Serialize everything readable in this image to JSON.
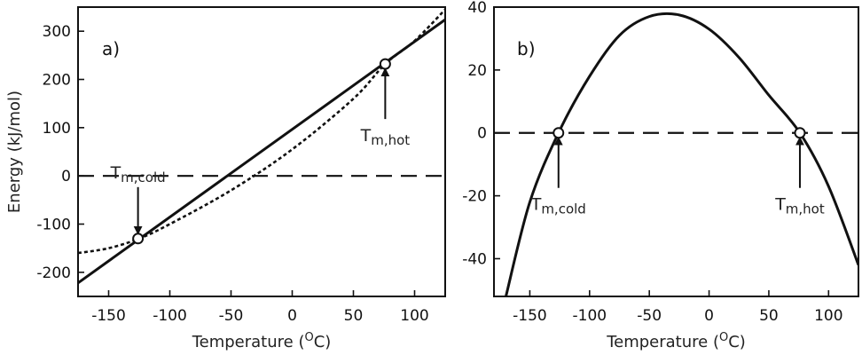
{
  "chart_data": [
    {
      "type": "line",
      "panel_label": "a)",
      "xlabel_main": "Temperature (",
      "xlabel_unit_sup": "O",
      "xlabel_unit": "C)",
      "ylabel": "Energy (kJ/mol)",
      "xlim": [
        -175,
        125
      ],
      "ylim": [
        -250,
        350
      ],
      "xticks": [
        -150,
        -100,
        -50,
        0,
        50,
        100
      ],
      "yticks": [
        -200,
        -100,
        0,
        100,
        200,
        300
      ],
      "series": [
        {
          "style": "solid",
          "x": [
            -175,
            125
          ],
          "y": [
            -222,
            324
          ]
        },
        {
          "style": "dotted",
          "x": [
            -175,
            -150,
            -125,
            -100,
            -50,
            0,
            50,
            76,
            100,
            125
          ],
          "y": [
            -160,
            -150,
            -130,
            -100,
            -30,
            55,
            160,
            232,
            280,
            345
          ]
        },
        {
          "style": "dashed",
          "x": [
            -175,
            125
          ],
          "y": [
            0,
            0
          ]
        }
      ],
      "markers": [
        {
          "x": -126,
          "y": -130
        },
        {
          "x": 76,
          "y": 232
        }
      ],
      "annotations": [
        {
          "main": "T",
          "sub": "m,cold",
          "x": -126,
          "y": -130,
          "direction": "down"
        },
        {
          "main": "T",
          "sub": "m,hot",
          "x": 76,
          "y": 232,
          "direction": "up"
        }
      ],
      "grid": false
    },
    {
      "type": "line",
      "panel_label": "b)",
      "xlabel_main": "Temperature (",
      "xlabel_unit_sup": "O",
      "xlabel_unit": "C)",
      "ylabel": "",
      "xlim": [
        -180,
        125
      ],
      "ylim": [
        -52,
        40
      ],
      "xticks": [
        -150,
        -100,
        -50,
        0,
        50,
        100
      ],
      "yticks": [
        -40,
        -20,
        0,
        20,
        40
      ],
      "series": [
        {
          "style": "solid",
          "x": [
            -170,
            -150,
            -126,
            -100,
            -75,
            -50,
            -25,
            0,
            25,
            50,
            76,
            100,
            125
          ],
          "y": [
            -52,
            -22,
            0,
            18,
            31,
            37,
            37.5,
            33,
            24,
            12,
            0,
            -17,
            -42
          ]
        },
        {
          "style": "dashed",
          "x": [
            -180,
            125
          ],
          "y": [
            0,
            0
          ]
        }
      ],
      "markers": [
        {
          "x": -126,
          "y": 0
        },
        {
          "x": 76,
          "y": 0
        }
      ],
      "annotations": [
        {
          "main": "T",
          "sub": "m,cold",
          "x": -126,
          "y": 0,
          "direction": "up"
        },
        {
          "main": "T",
          "sub": "m,hot",
          "x": 76,
          "y": 0,
          "direction": "up"
        }
      ],
      "grid": false
    }
  ]
}
